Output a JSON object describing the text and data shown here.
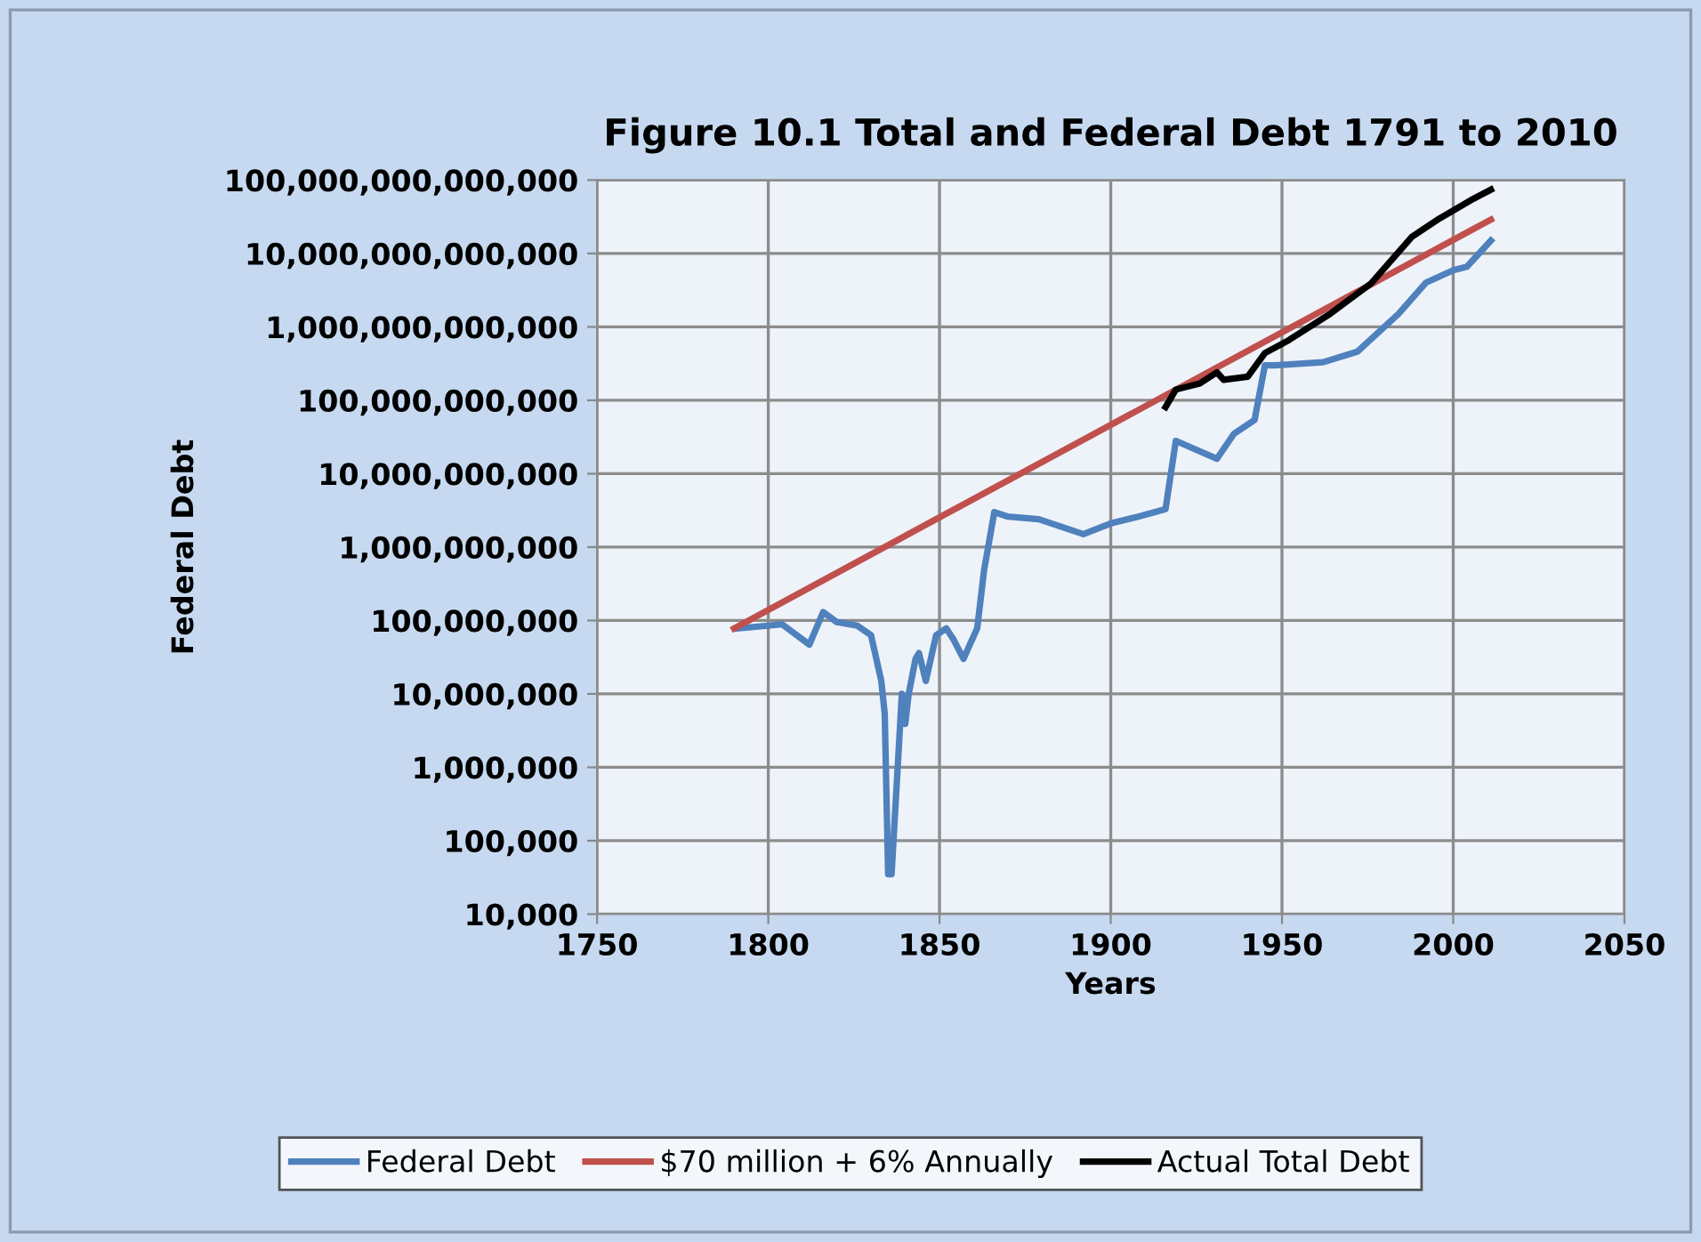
{
  "chart_data": {
    "type": "line",
    "title": "Figure 10.1 Total and Federal Debt 1791 to 2010",
    "xlabel": "Years",
    "ylabel": "Federal Debt",
    "log": "y",
    "grid": true,
    "legend": "bottom",
    "marker": "none",
    "line_style": "solid",
    "xlim": [
      1750,
      2050
    ],
    "xticks": [
      1750,
      1800,
      1850,
      1900,
      1950,
      2000,
      2050
    ],
    "ylim": [
      10000,
      100000000000000
    ],
    "yticks": [
      {
        "value": 10000,
        "label": "10,000"
      },
      {
        "value": 100000,
        "label": "100,000"
      },
      {
        "value": 1000000,
        "label": "1,000,000"
      },
      {
        "value": 10000000,
        "label": "10,000,000"
      },
      {
        "value": 100000000,
        "label": "100,000,000"
      },
      {
        "value": 1000000000,
        "label": "1,000,000,000"
      },
      {
        "value": 10000000000,
        "label": "10,000,000,000"
      },
      {
        "value": 100000000000,
        "label": "100,000,000,000"
      },
      {
        "value": 1000000000000,
        "label": "1,000,000,000,000"
      },
      {
        "value": 10000000000000,
        "label": "10,000,000,000,000"
      },
      {
        "value": 100000000000000,
        "label": "100,000,000,000,000"
      }
    ],
    "series": [
      {
        "name": "Federal Debt",
        "color": "#4f81bd",
        "x": [
          1791,
          1800,
          1804,
          1812,
          1816,
          1820,
          1826,
          1830,
          1833,
          1834,
          1835,
          1836,
          1838,
          1839,
          1840,
          1841,
          1843,
          1844,
          1846,
          1849,
          1852,
          1854,
          1857,
          1861,
          1863,
          1866,
          1870,
          1879,
          1892,
          1900,
          1908,
          1916,
          1919,
          1931,
          1936,
          1942,
          1945,
          1948,
          1962,
          1972,
          1984,
          1992,
          2000,
          2004,
          2011
        ],
        "values": [
          78000000.0,
          85000000.0,
          89000000.0,
          47000000.0,
          130000000.0,
          95000000.0,
          85000000.0,
          63000000.0,
          15000000.0,
          5400000.0,
          35000.0,
          35000.0,
          1500000.0,
          10000000.0,
          3900000.0,
          10000000.0,
          30000000.0,
          36000000.0,
          15000000.0,
          63000000.0,
          78000000.0,
          56000000.0,
          30000000.0,
          78000000.0,
          480000000.0,
          3000000000.0,
          2600000000.0,
          2400000000.0,
          1500000000.0,
          2100000000.0,
          2600000000.0,
          3300000000.0,
          28000000000.0,
          16000000000.0,
          35000000000.0,
          54000000000.0,
          300000000000.0,
          300000000000.0,
          330000000000.0,
          460000000000.0,
          1500000000000.0,
          4000000000000.0,
          5900000000000.0,
          6600000000000.0,
          15000000000000.0
        ]
      },
      {
        "name": "$70 million + 6% Annually",
        "color": "#c0504d",
        "x": [
          1790,
          2011
        ],
        "values": [
          78000000.0,
          29000000000000.0
        ]
      },
      {
        "name": "Actual Total Debt",
        "color": "#000000",
        "x": [
          1916,
          1919,
          1926,
          1931,
          1933,
          1940,
          1945,
          1952,
          1964,
          1976,
          1988,
          1996,
          2006,
          2011
        ],
        "values": [
          81000000000.0,
          140000000000.0,
          170000000000.0,
          240000000000.0,
          190000000000.0,
          210000000000.0,
          440000000000.0,
          660000000000.0,
          1500000000000.0,
          3900000000000.0,
          17000000000000.0,
          30000000000000.0,
          56000000000000.0,
          74000000000000.0
        ]
      }
    ]
  }
}
